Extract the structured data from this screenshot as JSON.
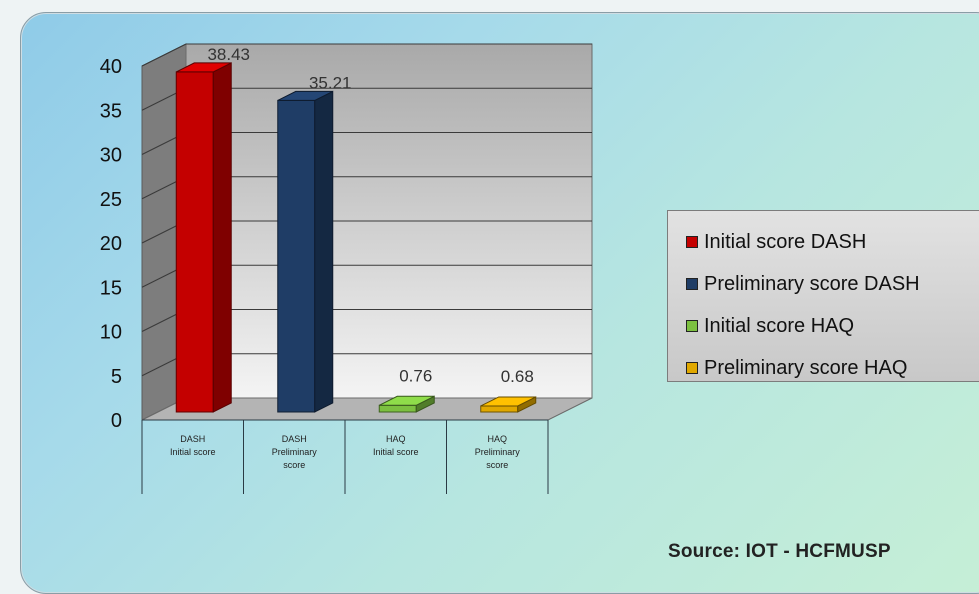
{
  "chart_data": {
    "type": "bar",
    "categories": [
      [
        "DASH",
        "Initial score"
      ],
      [
        "DASH",
        "Preliminary",
        "score"
      ],
      [
        "HAQ",
        "Initial score"
      ],
      [
        "HAQ",
        "Preliminary",
        "score"
      ]
    ],
    "values": [
      38.43,
      35.21,
      0.76,
      0.68
    ],
    "value_labels": [
      "38.43",
      "35.21",
      "0.76",
      "0.68"
    ],
    "colors": [
      "#c40000",
      "#1f3d66",
      "#7cc040",
      "#e0a800"
    ],
    "legend": [
      {
        "label": "Initial score DASH",
        "color": "#c40000"
      },
      {
        "label": "Preliminary score DASH",
        "color": "#1f3d66"
      },
      {
        "label": "Initial score HAQ",
        "color": "#7cc040"
      },
      {
        "label": "Preliminary score HAQ",
        "color": "#e0a800"
      }
    ],
    "y_ticks": [
      "0",
      "5",
      "10",
      "15",
      "20",
      "25",
      "30",
      "35",
      "40"
    ],
    "ylim": [
      0,
      40
    ],
    "grid": true,
    "legend_position": "right",
    "three_d": true
  },
  "source": "Source:  IOT - HCFMUSP"
}
